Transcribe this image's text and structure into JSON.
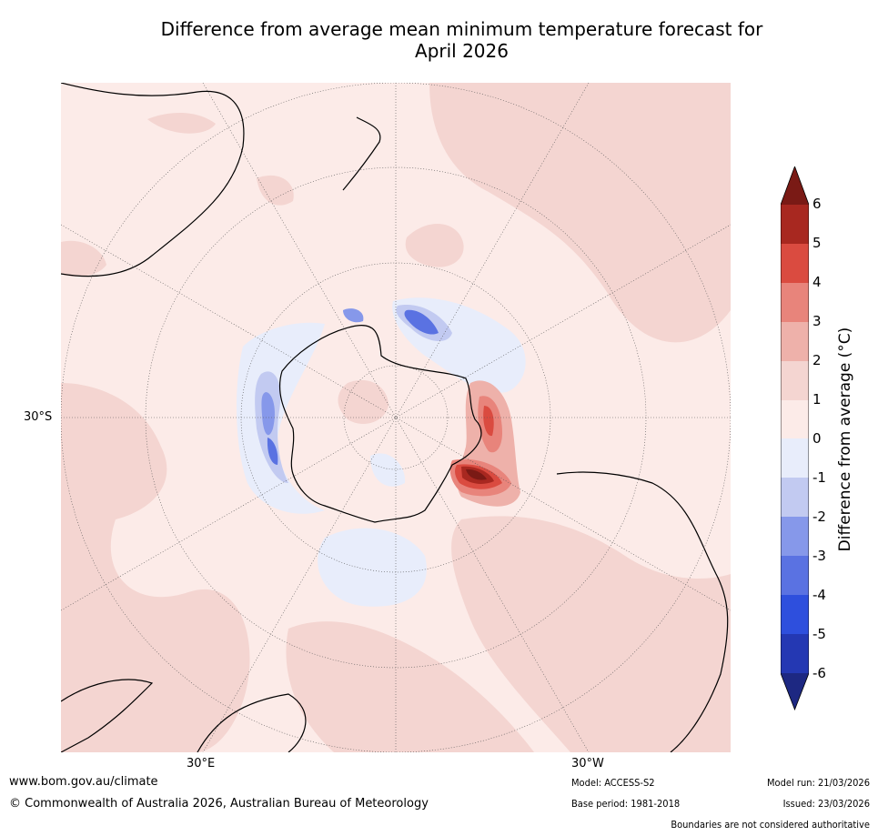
{
  "title": {
    "line1": "Difference from average mean minimum temperature forecast for",
    "line2": "April 2026"
  },
  "map": {
    "projection": "south-polar-stereographic",
    "lat_label": "30°S",
    "lon_labels": {
      "east": "30°E",
      "west": "30°W"
    }
  },
  "colorbar": {
    "label": "Difference from average (°C)",
    "ticks": [
      "6",
      "5",
      "4",
      "3",
      "2",
      "1",
      "0",
      "-1",
      "-2",
      "-3",
      "-4",
      "-5",
      "-6"
    ],
    "colors": {
      "above_6": "#7a1a15",
      "5_to_6": "#a82820",
      "4_to_5": "#da4b40",
      "3_to_4": "#e8847b",
      "2_to_3": "#eeb1aa",
      "1_to_2": "#f4d5d1",
      "0_to_1": "#fcebe8",
      "m1_to_0": "#e8edfb",
      "m2_to_m1": "#c2caf1",
      "m3_to_m2": "#8698ea",
      "m4_to_m3": "#5a72e2",
      "m5_to_m4": "#2e4fdd",
      "m6_to_m5": "#2438b3",
      "below_m6": "#1d2882"
    }
  },
  "footer": {
    "website": "www.bom.gov.au/climate",
    "copyright": "© Commonwealth of Australia 2026, Australian Bureau of Meteorology",
    "model": "Model: ACCESS-S2",
    "base_period": "Base period: 1981-2018",
    "model_run": "Model run: 21/03/2026",
    "issued": "Issued: 23/03/2026",
    "disclaimer": "Boundaries are not considered authoritative"
  }
}
